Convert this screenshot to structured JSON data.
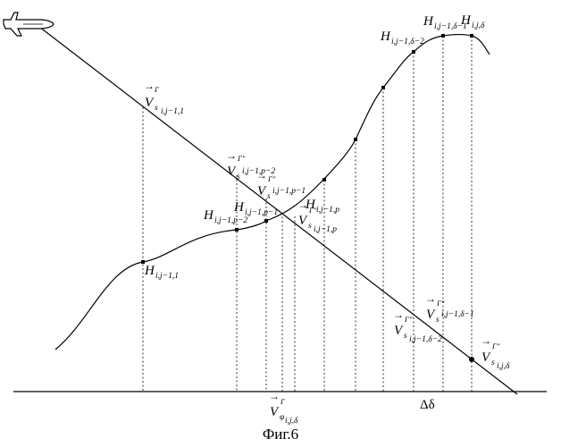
{
  "figure": {
    "caption": "Фиг.6",
    "delta_label": "Δδ",
    "colors": {
      "ink": "#000000",
      "background": "#ffffff"
    },
    "icons": [
      "airplane-icon"
    ]
  },
  "labels": {
    "v_s_i_j-1_1": {
      "main": "V",
      "sub": "s",
      "subsub": "i,j−1,1",
      "sup": "Γ"
    },
    "v_s_i_j-1_p-2": {
      "main": "V",
      "sub": "s",
      "subsub": "i,j−1,p−2",
      "sup": "Γ\""
    },
    "v_s_i_j-1_p-1": {
      "main": "V",
      "sub": "s",
      "subsub": "i,j−1,p−1",
      "sup": "Γ\""
    },
    "v_s_i_j-1_p": {
      "main": "V",
      "sub": "s",
      "subsub": "i,j−1,p",
      "sup": "Γ\""
    },
    "v_s_i_j-1_d-2": {
      "main": "V",
      "sub": "s",
      "subsub": "i,j−1,δ−2",
      "sup": "Γ\""
    },
    "v_s_i_j-1_d-1": {
      "main": "V",
      "sub": "s",
      "subsub": "i,j−1,δ−1",
      "sup": "Γ\""
    },
    "v_s_i_j_d": {
      "main": "V",
      "sub": "s",
      "subsub": "i,j,δ",
      "sup": "Γ\""
    },
    "v_phi_i_j_d": {
      "main": "V",
      "sub": "φ",
      "subsub": "i,j,δ",
      "sup": "Γ"
    },
    "h_i_j-1_1": {
      "main": "H",
      "sub": "i,j−1,1"
    },
    "h_i_j-1_p-2": {
      "main": "H",
      "sub": "i,j−1,p−2"
    },
    "h_i_j-1_p-1": {
      "main": "H",
      "sub": "i,j−1,p−1"
    },
    "h_i_j-1_p": {
      "main": "H",
      "sub": "i,j−1,p"
    },
    "h_i_j-1_d-2": {
      "main": "H",
      "sub": "i,j−1,δ−2"
    },
    "h_i_j-1_d-1": {
      "main": "H",
      "sub": "i,j−1,δ−1"
    },
    "h_i_j_d": {
      "main": "H",
      "sub": "i,j,δ"
    }
  }
}
